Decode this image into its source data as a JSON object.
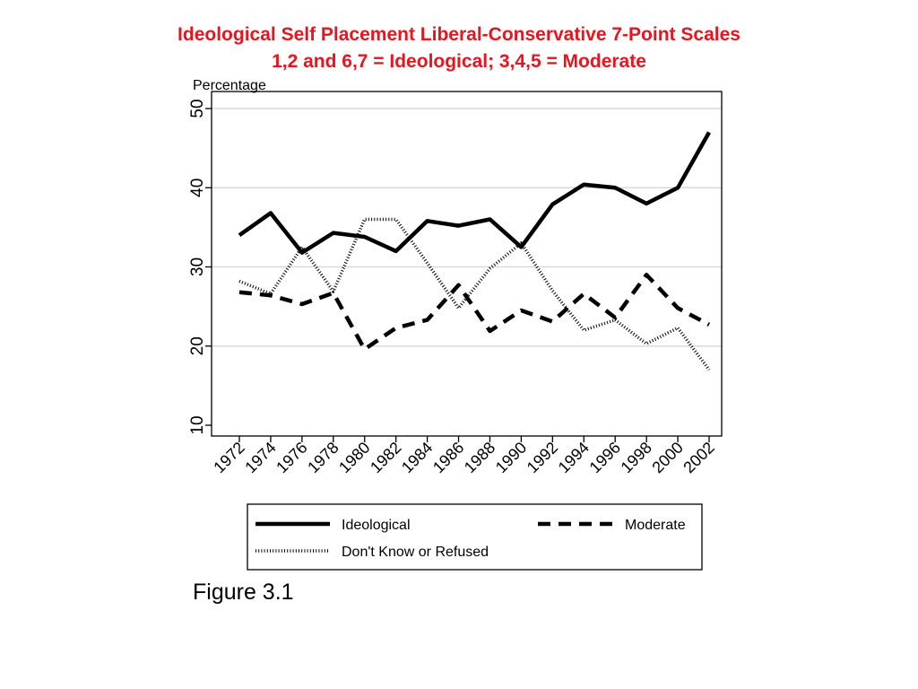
{
  "chart_data": {
    "type": "line",
    "title": "Ideological Self Placement Liberal-Conservative 7-Point Scales",
    "subtitle": "1,2 and 6,7 = Ideological;  3,4,5 = Moderate",
    "ylabel": "Percentage",
    "xlabel": "",
    "ylim": [
      10,
      50
    ],
    "yticks": [
      10,
      20,
      30,
      40,
      50
    ],
    "categories": [
      "1972",
      "1974",
      "1976",
      "1978",
      "1980",
      "1982",
      "1984",
      "1986",
      "1988",
      "1990",
      "1992",
      "1994",
      "1996",
      "1998",
      "2000",
      "2002"
    ],
    "grid": true,
    "legend_position": "bottom",
    "series": [
      {
        "name": "Ideological",
        "style": "solid",
        "values": [
          34.0,
          36.8,
          31.8,
          34.3,
          33.8,
          32.0,
          35.8,
          35.2,
          36.0,
          32.5,
          37.9,
          40.4,
          40.0,
          38.0,
          40.0,
          47.0
        ]
      },
      {
        "name": "Moderate",
        "style": "dashed",
        "values": [
          26.8,
          26.4,
          25.3,
          26.7,
          19.6,
          22.3,
          23.3,
          27.7,
          21.9,
          24.5,
          23.1,
          26.6,
          23.6,
          29.0,
          24.8,
          22.7
        ]
      },
      {
        "name": "Don't Know or Refused",
        "style": "dotted",
        "values": [
          28.2,
          26.6,
          32.5,
          26.9,
          36.0,
          36.0,
          30.5,
          24.8,
          29.8,
          33.0,
          27.0,
          22.0,
          23.3,
          20.3,
          22.3,
          17.0
        ]
      }
    ]
  },
  "caption": "Figure 3.1",
  "colors": {
    "title": "#e8141e",
    "line": "#000000",
    "grid": "#d9d9d9"
  }
}
